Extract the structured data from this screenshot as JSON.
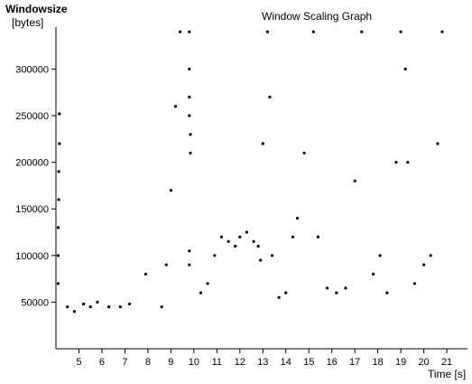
{
  "chart_data": {
    "type": "scatter",
    "title": "Window Scaling Graph",
    "ylabel_lines": [
      "Windowsize",
      "[bytes]"
    ],
    "xlabel": "Time [s]",
    "xlim": [
      4.0,
      21.9
    ],
    "ylim": [
      0,
      345000
    ],
    "x_ticks": [
      5,
      6,
      7,
      8,
      9,
      10,
      11,
      12,
      13,
      14,
      15,
      16,
      17,
      18,
      19,
      20,
      21
    ],
    "y_ticks": [
      50000,
      100000,
      150000,
      200000,
      250000,
      300000
    ],
    "grid": false,
    "legend": "none",
    "marker_color": "#000000",
    "series": [
      {
        "points": [
          [
            4.1,
            70000
          ],
          [
            4.1,
            100000
          ],
          [
            4.1,
            130000
          ],
          [
            4.12,
            160000
          ],
          [
            4.12,
            190000
          ],
          [
            4.15,
            220000
          ],
          [
            4.15,
            252000
          ],
          [
            4.5,
            45000
          ],
          [
            4.8,
            40000
          ],
          [
            5.2,
            48000
          ],
          [
            5.5,
            45000
          ],
          [
            5.8,
            50000
          ],
          [
            6.3,
            45000
          ],
          [
            6.8,
            45000
          ],
          [
            7.2,
            48000
          ],
          [
            7.9,
            80000
          ],
          [
            8.6,
            45000
          ],
          [
            8.8,
            90000
          ],
          [
            9.0,
            170000
          ],
          [
            9.2,
            260000
          ],
          [
            9.4,
            340000
          ],
          [
            9.8,
            340000
          ],
          [
            9.8,
            300000
          ],
          [
            9.8,
            270000
          ],
          [
            9.8,
            250000
          ],
          [
            9.85,
            230000
          ],
          [
            9.85,
            210000
          ],
          [
            9.8,
            105000
          ],
          [
            9.8,
            90000
          ],
          [
            10.3,
            60000
          ],
          [
            10.6,
            70000
          ],
          [
            10.9,
            100000
          ],
          [
            11.2,
            120000
          ],
          [
            11.5,
            115000
          ],
          [
            11.8,
            110000
          ],
          [
            12.0,
            120000
          ],
          [
            12.3,
            125000
          ],
          [
            12.6,
            115000
          ],
          [
            12.8,
            110000
          ],
          [
            12.9,
            95000
          ],
          [
            13.0,
            220000
          ],
          [
            13.2,
            340000
          ],
          [
            13.3,
            270000
          ],
          [
            13.4,
            100000
          ],
          [
            13.7,
            55000
          ],
          [
            14.0,
            60000
          ],
          [
            14.3,
            120000
          ],
          [
            14.5,
            140000
          ],
          [
            14.8,
            210000
          ],
          [
            15.2,
            340000
          ],
          [
            15.4,
            120000
          ],
          [
            15.8,
            65000
          ],
          [
            16.2,
            60000
          ],
          [
            16.6,
            65000
          ],
          [
            17.0,
            180000
          ],
          [
            17.3,
            340000
          ],
          [
            17.8,
            80000
          ],
          [
            18.1,
            100000
          ],
          [
            18.4,
            60000
          ],
          [
            18.8,
            200000
          ],
          [
            19.0,
            340000
          ],
          [
            19.2,
            300000
          ],
          [
            19.3,
            200000
          ],
          [
            19.6,
            70000
          ],
          [
            20.0,
            90000
          ],
          [
            20.3,
            100000
          ],
          [
            20.6,
            220000
          ],
          [
            20.8,
            340000
          ]
        ]
      }
    ]
  }
}
